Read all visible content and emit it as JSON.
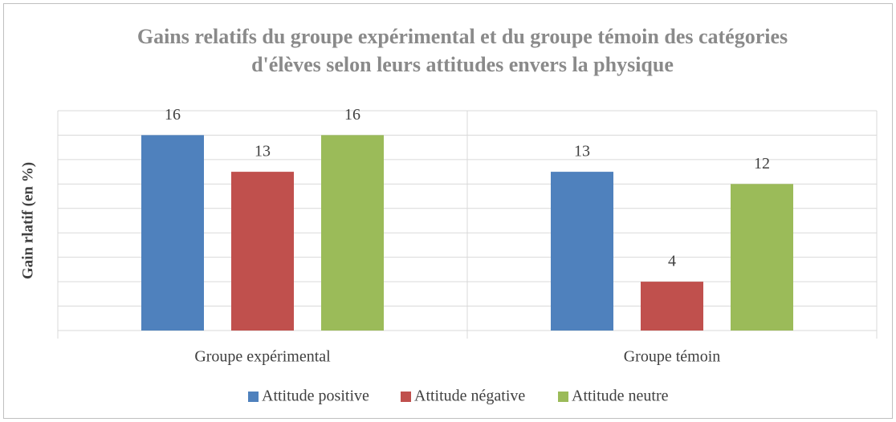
{
  "chart_data": {
    "type": "bar",
    "title": "Gains relatifs  du groupe expérimental et du groupe témoin des catégories d'élèves selon leurs attitudes envers la physique",
    "y_label": "Gain rlatif (en %)",
    "categories": [
      "Groupe expérimental",
      "Groupe témoin"
    ],
    "series": [
      {
        "name": "Attitude positive",
        "color": "#4f81bd",
        "values": [
          16,
          13
        ]
      },
      {
        "name": "Attitude négative",
        "color": "#c0504d",
        "values": [
          13,
          4
        ]
      },
      {
        "name": "Attitude neutre",
        "color": "#9bbb59",
        "values": [
          16,
          12
        ]
      }
    ],
    "ylim": [
      0,
      18
    ],
    "yticks": [
      0,
      2,
      4,
      6,
      8,
      10,
      12,
      14,
      16,
      18
    ],
    "grid": true,
    "legend": "bottom"
  }
}
